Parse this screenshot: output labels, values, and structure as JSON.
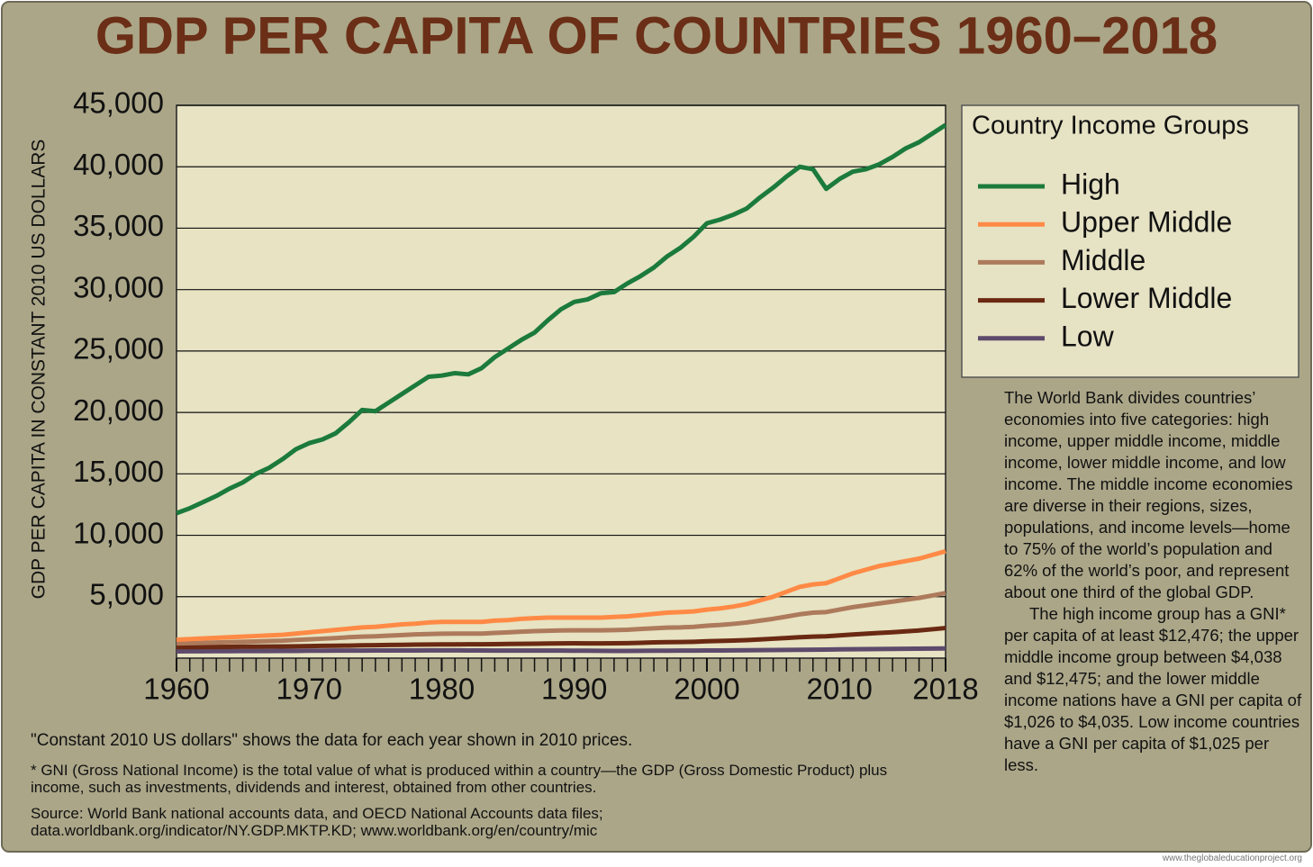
{
  "chart_data": {
    "type": "line",
    "title": "GDP PER CAPITA OF COUNTRIES 1960–2018",
    "ylabel": "GDP PER CAPITA IN CONSTANT 2010 US DOLLARS",
    "legend_title": "Country Income Groups",
    "grid": true,
    "xlim": [
      1960,
      2018
    ],
    "xticks": [
      1960,
      1970,
      1980,
      1990,
      2000,
      2010,
      2018
    ],
    "ylim": [
      0,
      45000
    ],
    "yticks": [
      {
        "value": 5000,
        "label": "5,000"
      },
      {
        "value": 10000,
        "label": "10,000"
      },
      {
        "value": 15000,
        "label": "15,000"
      },
      {
        "value": 20000,
        "label": "20,000"
      },
      {
        "value": 25000,
        "label": "25,000"
      },
      {
        "value": 30000,
        "label": "30,000"
      },
      {
        "value": 35000,
        "label": "35,000"
      },
      {
        "value": 40000,
        "label": "40,000"
      },
      {
        "value": 45000,
        "label": "45,000"
      }
    ],
    "x": [
      1960,
      1961,
      1962,
      1963,
      1964,
      1965,
      1966,
      1967,
      1968,
      1969,
      1970,
      1971,
      1972,
      1973,
      1974,
      1975,
      1976,
      1977,
      1978,
      1979,
      1980,
      1981,
      1982,
      1983,
      1984,
      1985,
      1986,
      1987,
      1988,
      1989,
      1990,
      1991,
      1992,
      1993,
      1994,
      1995,
      1996,
      1997,
      1998,
      1999,
      2000,
      2001,
      2002,
      2003,
      2004,
      2005,
      2006,
      2007,
      2008,
      2009,
      2010,
      2011,
      2012,
      2013,
      2014,
      2015,
      2016,
      2017,
      2018
    ],
    "series": [
      {
        "name": "High",
        "color": "#1b7a3c",
        "values": [
          11800,
          12200,
          12700,
          13200,
          13800,
          14300,
          15000,
          15500,
          16200,
          17000,
          17500,
          17800,
          18300,
          19200,
          20200,
          20100,
          20800,
          21500,
          22200,
          22900,
          23000,
          23200,
          23100,
          23600,
          24500,
          25200,
          25900,
          26500,
          27500,
          28400,
          29000,
          29200,
          29700,
          29800,
          30500,
          31100,
          31800,
          32700,
          33400,
          34300,
          35400,
          35700,
          36100,
          36600,
          37500,
          38300,
          39200,
          40000,
          39800,
          38200,
          39000,
          39600,
          39800,
          40200,
          40800,
          41500,
          42000,
          42700,
          43400
        ]
      },
      {
        "name": "Upper Middle",
        "color": "#ff8a45",
        "values": [
          1500,
          1550,
          1600,
          1650,
          1700,
          1750,
          1800,
          1850,
          1900,
          2000,
          2100,
          2200,
          2300,
          2400,
          2500,
          2550,
          2650,
          2750,
          2800,
          2900,
          2950,
          2950,
          2950,
          2950,
          3050,
          3100,
          3200,
          3250,
          3300,
          3300,
          3300,
          3300,
          3300,
          3350,
          3400,
          3500,
          3600,
          3700,
          3750,
          3800,
          3950,
          4050,
          4200,
          4400,
          4700,
          5000,
          5400,
          5800,
          6000,
          6100,
          6500,
          6900,
          7200,
          7500,
          7700,
          7900,
          8100,
          8400,
          8700
        ]
      },
      {
        "name": "Middle",
        "color": "#ad7a5c",
        "values": [
          1200,
          1220,
          1240,
          1270,
          1300,
          1330,
          1360,
          1390,
          1420,
          1480,
          1530,
          1580,
          1630,
          1700,
          1750,
          1780,
          1830,
          1880,
          1930,
          1960,
          1990,
          2000,
          2000,
          2000,
          2050,
          2100,
          2150,
          2200,
          2230,
          2250,
          2260,
          2260,
          2260,
          2280,
          2310,
          2370,
          2430,
          2480,
          2500,
          2550,
          2640,
          2700,
          2790,
          2900,
          3050,
          3200,
          3380,
          3570,
          3700,
          3750,
          3950,
          4150,
          4300,
          4450,
          4600,
          4750,
          4900,
          5100,
          5300
        ]
      },
      {
        "name": "Lower Middle",
        "color": "#6a2912",
        "values": [
          900,
          900,
          910,
          910,
          920,
          930,
          930,
          940,
          950,
          960,
          980,
          1000,
          1010,
          1020,
          1040,
          1050,
          1070,
          1080,
          1100,
          1110,
          1120,
          1120,
          1130,
          1130,
          1140,
          1150,
          1160,
          1170,
          1190,
          1200,
          1210,
          1200,
          1200,
          1210,
          1220,
          1250,
          1280,
          1300,
          1310,
          1330,
          1370,
          1400,
          1430,
          1470,
          1520,
          1580,
          1640,
          1700,
          1750,
          1780,
          1850,
          1920,
          1990,
          2050,
          2110,
          2180,
          2250,
          2350,
          2450
        ]
      },
      {
        "name": "Low",
        "color": "#5e4a6c",
        "values": [
          550,
          555,
          560,
          565,
          570,
          575,
          575,
          580,
          585,
          590,
          600,
          605,
          610,
          615,
          615,
          620,
          620,
          625,
          625,
          630,
          630,
          630,
          625,
          620,
          615,
          610,
          610,
          610,
          610,
          610,
          605,
          600,
          595,
          590,
          590,
          595,
          600,
          605,
          610,
          615,
          620,
          625,
          630,
          640,
          650,
          660,
          670,
          680,
          690,
          700,
          710,
          720,
          730,
          740,
          750,
          760,
          770,
          780,
          790
        ]
      }
    ],
    "description": [
      "The World Bank divides countries’ economies into five categories: high income, upper middle income, middle income, lower middle income, and low income. The middle income economies are diverse in their regions, sizes, populations, and income levels—home to 75% of the world’s population and 62% of the world’s poor, and represent about one third of the global GDP.",
      "The high income group has a GNI* per capita of at least $12,476; the upper middle income group between $4,038 and $12,475; and the lower middle income nations have a GNI per capita of $1,026 to $4,035. Low income countries have a GNI per capita of $1,025 per less."
    ],
    "notes": [
      "\"Constant 2010 US dollars\" shows the data for each year shown in 2010 prices.",
      "* GNI (Gross National Income) is the total value of what is produced within a country—the GDP  (Gross Domestic Product) plus income, such as investments, dividends and interest, obtained from other countries.",
      "Source: World Bank national accounts data, and OECD National Accounts data files; data.worldbank.org/indicator/NY.GDP.MKTP.KD; www.worldbank.org/en/country/mic"
    ],
    "credit": "www.theglobaleducationproject.org"
  }
}
